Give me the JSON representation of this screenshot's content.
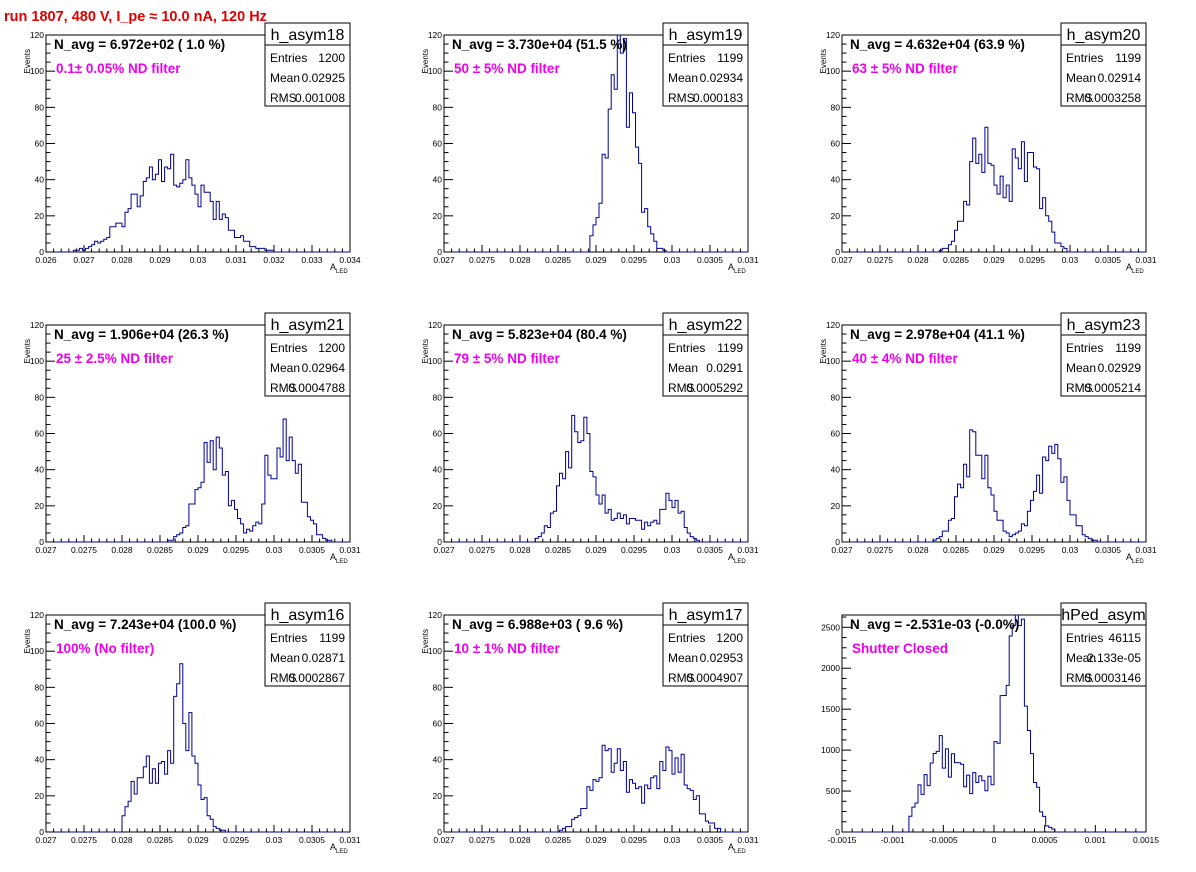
{
  "page_title": "run 1807,   480 V, I_pe ≈ 10.0 nA, 120 Hz",
  "chart_data": [
    {
      "type": "histogram",
      "name": "h_asym18",
      "navg": "N_avg = 6.972e+02 ( 1.0 %)",
      "annotation": "0.1± 0.05% ND filter",
      "stats": [
        {
          "label": "Entries",
          "value": "1200"
        },
        {
          "label": "Mean",
          "value": "0.02925"
        },
        {
          "label": "RMS",
          "value": "0.001008"
        }
      ],
      "ylabel": "Events",
      "xlabel": "A_LED",
      "xlim": [
        0.026,
        0.034
      ],
      "ylim": [
        0,
        120
      ],
      "xticks": [
        0.026,
        0.027,
        0.028,
        0.029,
        0.03,
        0.031,
        0.032,
        0.033,
        0.034
      ],
      "xtick_labels": [
        "0.026",
        "0.027",
        "0.028",
        "0.029",
        "0.03",
        "0.031",
        "0.032",
        "0.033",
        "0.034"
      ],
      "yticks": [
        0,
        20,
        40,
        60,
        80,
        100,
        120
      ],
      "curve": {
        "peaks": [
          [
            0.02895,
            36,
            0.0008
          ],
          [
            0.0301,
            20,
            0.0007
          ]
        ],
        "bins": [
          0.0267,
          0.0323
        ]
      },
      "bin_highlights": [
        [
          0.029,
          51
        ],
        [
          0.0286,
          39
        ],
        [
          0.0293,
          42
        ],
        [
          0.0296,
          40
        ],
        [
          0.03,
          30
        ],
        [
          0.0302,
          29
        ],
        [
          0.0305,
          28
        ]
      ]
    },
    {
      "type": "histogram",
      "name": "h_asym19",
      "navg": "N_avg = 3.730e+04 (51.5 %)",
      "annotation": "50 ± 5% ND filter",
      "stats": [
        {
          "label": "Entries",
          "value": "1199"
        },
        {
          "label": "Mean",
          "value": "0.02934"
        },
        {
          "label": "RMS",
          "value": "0.000183"
        }
      ],
      "ylabel": "Events",
      "xlabel": "A_LED",
      "xlim": [
        0.027,
        0.031
      ],
      "ylim": [
        0,
        120
      ],
      "xticks": [
        0.027,
        0.0275,
        0.028,
        0.0285,
        0.029,
        0.0295,
        0.03,
        0.0305,
        0.031
      ],
      "xtick_labels": [
        "0.027",
        "0.0275",
        "0.028",
        "0.0285",
        "0.029",
        "0.0295",
        "0.03",
        "0.0305",
        "0.031"
      ],
      "yticks": [
        0,
        20,
        40,
        60,
        80,
        100,
        120
      ],
      "curve": {
        "peaks": [
          [
            0.02934,
            105,
            0.00018
          ]
        ],
        "bins": [
          0.0289,
          0.0299
        ]
      },
      "bin_highlights": [
        [
          0.0293,
          110
        ],
        [
          0.02935,
          110
        ],
        [
          0.0292,
          98
        ],
        [
          0.0294,
          100
        ]
      ]
    },
    {
      "type": "histogram",
      "name": "h_asym20",
      "navg": "N_avg = 4.632e+04 (63.9 %)",
      "annotation": "63 ± 5% ND filter",
      "stats": [
        {
          "label": "Entries",
          "value": "1199"
        },
        {
          "label": "Mean",
          "value": "0.02914"
        },
        {
          "label": "RMS",
          "value": "0.0003258"
        }
      ],
      "ylabel": "Events",
      "xlabel": "A_LED",
      "xlim": [
        0.027,
        0.031
      ],
      "ylim": [
        0,
        120
      ],
      "xticks": [
        0.027,
        0.0275,
        0.028,
        0.0285,
        0.029,
        0.0295,
        0.03,
        0.0305,
        0.031
      ],
      "xtick_labels": [
        "0.027",
        "0.0275",
        "0.028",
        "0.0285",
        "0.029",
        "0.0295",
        "0.03",
        "0.0305",
        "0.031"
      ],
      "yticks": [
        0,
        20,
        40,
        60,
        80,
        100,
        120
      ],
      "curve": {
        "peaks": [
          [
            0.02885,
            55,
            0.00019
          ],
          [
            0.02944,
            53,
            0.00019
          ]
        ],
        "bins": [
          0.0282,
          0.02995
        ]
      },
      "bin_highlights": [
        [
          0.02875,
          63
        ],
        [
          0.0294,
          61
        ],
        [
          0.02925,
          57
        ]
      ]
    },
    {
      "type": "histogram",
      "name": "h_asym21",
      "navg": "N_avg = 1.906e+04 (26.3 %)",
      "annotation": "25 ± 2.5% ND filter",
      "stats": [
        {
          "label": "Entries",
          "value": "1200"
        },
        {
          "label": "Mean",
          "value": "0.02964"
        },
        {
          "label": "RMS",
          "value": "0.0004788"
        }
      ],
      "ylabel": "Events",
      "xlabel": "A_LED",
      "xlim": [
        0.027,
        0.031
      ],
      "ylim": [
        0,
        120
      ],
      "xticks": [
        0.027,
        0.0275,
        0.028,
        0.0285,
        0.029,
        0.0295,
        0.03,
        0.0305,
        0.031
      ],
      "xtick_labels": [
        "0.027",
        "0.0275",
        "0.028",
        "0.0285",
        "0.029",
        "0.0295",
        "0.03",
        "0.0305",
        "0.031"
      ],
      "yticks": [
        0,
        20,
        40,
        60,
        80,
        100,
        120
      ],
      "curve": {
        "peaks": [
          [
            0.0292,
            50,
            0.0002
          ],
          [
            0.03015,
            53,
            0.0002
          ]
        ],
        "bins": [
          0.0286,
          0.0308
        ]
      },
      "bin_highlights": [
        [
          0.02925,
          58
        ],
        [
          0.0302,
          58
        ],
        [
          0.0299,
          48
        ]
      ]
    },
    {
      "type": "histogram",
      "name": "h_asym22",
      "navg": "N_avg = 5.823e+04 (80.4 %)",
      "annotation": "79 ± 5% ND filter",
      "stats": [
        {
          "label": "Entries",
          "value": "1199"
        },
        {
          "label": "Mean",
          "value": "0.0291"
        },
        {
          "label": "RMS",
          "value": "0.0005292"
        }
      ],
      "ylabel": "Events",
      "xlabel": "A_LED",
      "xlim": [
        0.027,
        0.031
      ],
      "ylim": [
        0,
        120
      ],
      "xticks": [
        0.027,
        0.0275,
        0.028,
        0.0285,
        0.029,
        0.0295,
        0.03,
        0.0305,
        0.031
      ],
      "xtick_labels": [
        "0.027",
        "0.0275",
        "0.028",
        "0.0285",
        "0.029",
        "0.0295",
        "0.03",
        "0.0305",
        "0.031"
      ],
      "yticks": [
        0,
        20,
        40,
        60,
        80,
        100,
        120
      ],
      "curve": {
        "peaks": [
          [
            0.02875,
            58,
            0.0002
          ],
          [
            0.0294,
            13,
            0.0003
          ],
          [
            0.03,
            22,
            0.00013
          ]
        ],
        "bins": [
          0.0282,
          0.0306
        ]
      },
      "bin_highlights": [
        [
          0.02885,
          69
        ],
        [
          0.0287,
          60
        ]
      ]
    },
    {
      "type": "histogram",
      "name": "h_asym23",
      "navg": "N_avg = 2.978e+04 (41.1 %)",
      "annotation": "40 ± 4% ND filter",
      "stats": [
        {
          "label": "Entries",
          "value": "1199"
        },
        {
          "label": "Mean",
          "value": "0.02929"
        },
        {
          "label": "RMS",
          "value": "0.0005214"
        }
      ],
      "ylabel": "Events",
      "xlabel": "A_LED",
      "xlim": [
        0.027,
        0.031
      ],
      "ylim": [
        0,
        120
      ],
      "xticks": [
        0.027,
        0.0275,
        0.028,
        0.0285,
        0.029,
        0.0295,
        0.03,
        0.0305,
        0.031
      ],
      "xtick_labels": [
        "0.027",
        "0.0275",
        "0.028",
        "0.0285",
        "0.029",
        "0.0295",
        "0.03",
        "0.0305",
        "0.031"
      ],
      "yticks": [
        0,
        20,
        40,
        60,
        80,
        100,
        120
      ],
      "curve": {
        "peaks": [
          [
            0.02875,
            52,
            0.00019
          ],
          [
            0.02975,
            47,
            0.0002
          ]
        ],
        "bins": [
          0.0282,
          0.0304
        ]
      },
      "bin_highlights": [
        [
          0.02875,
          61
        ],
        [
          0.0298,
          54
        ]
      ]
    },
    {
      "type": "histogram",
      "name": "h_asym16",
      "navg": "N_avg = 7.243e+04 (100.0 %)",
      "annotation": "100% (No filter)",
      "stats": [
        {
          "label": "Entries",
          "value": "1199"
        },
        {
          "label": "Mean",
          "value": "0.02871"
        },
        {
          "label": "RMS",
          "value": "0.0002867"
        }
      ],
      "ylabel": "Events",
      "xlabel": "A_LED",
      "xlim": [
        0.027,
        0.031
      ],
      "ylim": [
        0,
        120
      ],
      "xticks": [
        0.027,
        0.0275,
        0.028,
        0.0285,
        0.029,
        0.0295,
        0.03,
        0.0305,
        0.031
      ],
      "xtick_labels": [
        "0.027",
        "0.0275",
        "0.028",
        "0.0285",
        "0.029",
        "0.0295",
        "0.03",
        "0.0305",
        "0.031"
      ],
      "yticks": [
        0,
        20,
        40,
        60,
        80,
        100,
        120
      ],
      "curve": {
        "peaks": [
          [
            0.0283,
            33,
            0.00018
          ],
          [
            0.0288,
            60,
            0.00018
          ]
        ],
        "bins": [
          0.028,
          0.0296
        ]
      },
      "bin_highlights": [
        [
          0.0288,
          93
        ],
        [
          0.02875,
          82
        ],
        [
          0.0287,
          75
        ]
      ]
    },
    {
      "type": "histogram",
      "name": "h_asym17",
      "navg": "N_avg = 6.988e+03 ( 9.6 %)",
      "annotation": "10 ± 1% ND filter",
      "stats": [
        {
          "label": "Entries",
          "value": "1200"
        },
        {
          "label": "Mean",
          "value": "0.02953"
        },
        {
          "label": "RMS",
          "value": "0.0004907"
        }
      ],
      "ylabel": "Events",
      "xlabel": "A_LED",
      "xlim": [
        0.027,
        0.031
      ],
      "ylim": [
        0,
        120
      ],
      "xticks": [
        0.027,
        0.0275,
        0.028,
        0.0285,
        0.029,
        0.0295,
        0.03,
        0.0305,
        0.031
      ],
      "xtick_labels": [
        "0.027",
        "0.0275",
        "0.028",
        "0.0285",
        "0.029",
        "0.0295",
        "0.03",
        "0.0305",
        "0.031"
      ],
      "yticks": [
        0,
        20,
        40,
        60,
        80,
        100,
        120
      ],
      "curve": {
        "peaks": [
          [
            0.0292,
            41,
            0.00025
          ],
          [
            0.03,
            39,
            0.00025
          ]
        ],
        "bins": [
          0.0285,
          0.03065
        ]
      },
      "bin_highlights": [
        [
          0.02915,
          45
        ],
        [
          0.03,
          45
        ]
      ]
    },
    {
      "type": "histogram",
      "name": "hPed_asym",
      "navg": "N_avg = -2.531e-03 (-0.0%)",
      "annotation": "Shutter Closed",
      "stats": [
        {
          "label": "Entries",
          "value": "46115"
        },
        {
          "label": "Mean",
          "value": "2.133e-05"
        },
        {
          "label": "RMS",
          "value": "0.0003146"
        }
      ],
      "ylabel": "",
      "xlabel": "",
      "xlim": [
        -0.0015,
        0.0015
      ],
      "ylim": [
        0,
        2650
      ],
      "xticks": [
        -0.0015,
        -0.001,
        -0.0005,
        0,
        0.0005,
        0.001,
        0.0015
      ],
      "xtick_labels": [
        "-0.0015",
        "-0.001",
        "-0.0005",
        "0",
        "0.0005",
        "0.001",
        "0.0015"
      ],
      "yticks": [
        0,
        500,
        1000,
        1500,
        2000,
        2500
      ],
      "curve": {
        "peaks": [
          [
            -0.00055,
            720,
            0.00016
          ],
          [
            -0.00015,
            560,
            0.0003
          ],
          [
            0.00022,
            2350,
            0.00011
          ]
        ],
        "bins": [
          -0.00085,
          0.0006
        ]
      },
      "bin_highlights": [
        [
          0.0002,
          2520
        ],
        [
          0.00025,
          2520
        ]
      ]
    }
  ]
}
